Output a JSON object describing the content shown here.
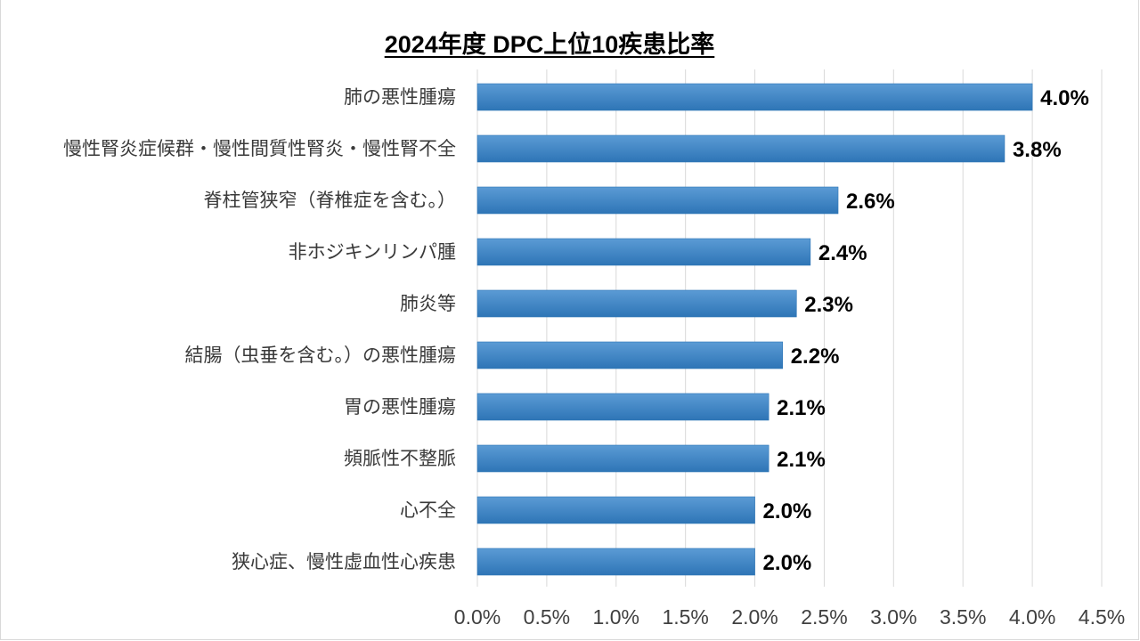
{
  "chart_data": {
    "type": "bar",
    "orientation": "horizontal",
    "title": "2024年度 DPC上位10疾患比率",
    "categories": [
      "肺の悪性腫瘍",
      "慢性腎炎症候群・慢性間質性腎炎・慢性腎不全",
      "脊柱管狭窄（脊椎症を含む。）",
      "非ホジキンリンパ腫",
      "肺炎等",
      "結腸（虫垂を含む。）の悪性腫瘍",
      "胃の悪性腫瘍",
      "頻脈性不整脈",
      "心不全",
      "狭心症、慢性虚血性心疾患"
    ],
    "values": [
      4.0,
      3.8,
      2.6,
      2.4,
      2.3,
      2.2,
      2.1,
      2.1,
      2.0,
      2.0
    ],
    "data_labels": [
      "4.0%",
      "3.8%",
      "2.6%",
      "2.4%",
      "2.3%",
      "2.2%",
      "2.1%",
      "2.1%",
      "2.0%",
      "2.0%"
    ],
    "xlim": [
      0,
      4.5
    ],
    "xticks": [
      0,
      0.5,
      1.0,
      1.5,
      2.0,
      2.5,
      3.0,
      3.5,
      4.0,
      4.5
    ],
    "xtick_labels": [
      "0.0%",
      "0.5%",
      "1.0%",
      "1.5%",
      "2.0%",
      "2.5%",
      "3.0%",
      "3.5%",
      "4.0%",
      "4.5%"
    ],
    "xlabel": "",
    "ylabel": "",
    "grid": true,
    "legend": "none",
    "bar_color": "#5b9bd5",
    "bar_color_dark": "#2e75b6"
  }
}
